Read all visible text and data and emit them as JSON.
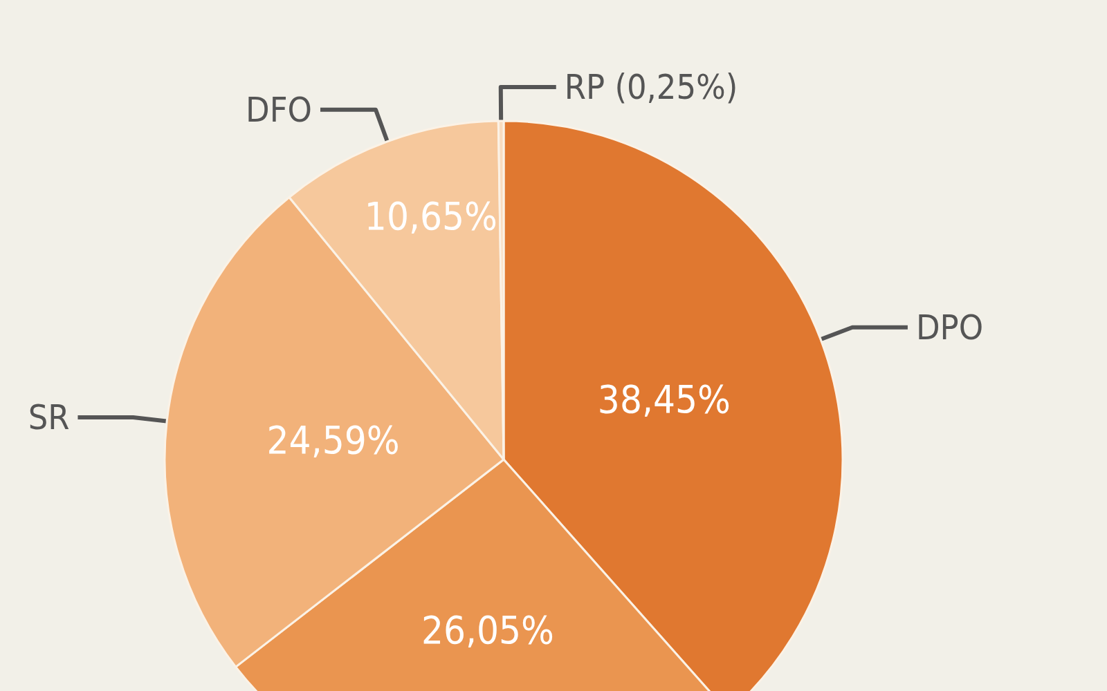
{
  "chart_data": {
    "type": "pie",
    "categories": [
      "DPO",
      null,
      "SR",
      "DFO",
      "RP"
    ],
    "values": [
      38.45,
      26.05,
      24.59,
      10.65,
      0.25
    ],
    "value_labels": [
      "38,45%",
      "26,05%",
      "24,59%",
      "10,65%",
      "(0,25%)"
    ],
    "colors": [
      "#e07830",
      "#ea9550",
      "#f2b27a",
      "#f6c89c",
      "#f8dcc0"
    ],
    "legend": false
  }
}
